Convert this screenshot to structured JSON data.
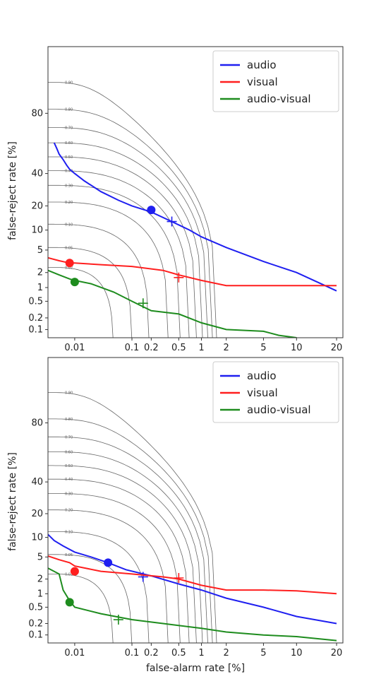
{
  "chart_data": [
    {
      "type": "line",
      "xlabel": "",
      "ylabel": "false-reject rate [%]",
      "x_scale": "probit",
      "y_scale": "probit",
      "xlim": [
        0.003,
        22
      ],
      "ylim": [
        0.06,
        98
      ],
      "x_ticks": [
        "0.01",
        "0.1",
        "0.2",
        "0.5",
        "1",
        "2",
        "5",
        "10",
        "20"
      ],
      "y_ticks": [
        "80",
        "40",
        "20",
        "10",
        "5",
        "2",
        "1",
        "0.5",
        "0.2",
        "0.1"
      ],
      "grid": false,
      "legend_position": "top-right",
      "iso_cost_contours": [
        "0.90",
        "0.80",
        "0.70",
        "0.60",
        "0.50",
        "0.40",
        "0.30",
        "0.20",
        "0.10",
        "0.05",
        "0.02"
      ],
      "series": [
        {
          "name": "audio",
          "color": "#1f1ff0",
          "points": [
            [
              0.004,
              62
            ],
            [
              0.0045,
              58
            ],
            [
              0.005,
              54
            ],
            [
              0.006,
              50
            ],
            [
              0.007,
              46
            ],
            [
              0.008,
              43
            ],
            [
              0.01,
              40
            ],
            [
              0.015,
              35
            ],
            [
              0.03,
              28
            ],
            [
              0.06,
              23
            ],
            [
              0.1,
              20
            ],
            [
              0.2,
              17
            ],
            [
              0.4,
              13
            ],
            [
              0.7,
              10
            ],
            [
              1,
              8
            ],
            [
              2,
              5.5
            ],
            [
              5,
              3.2
            ],
            [
              10,
              2
            ],
            [
              20,
              0.85
            ]
          ],
          "marker_dot": [
            0.2,
            18
          ],
          "marker_plus": [
            0.4,
            13
          ]
        },
        {
          "name": "visual",
          "color": "#ff1f1f",
          "points": [
            [
              0.003,
              3.7
            ],
            [
              0.005,
              3.3
            ],
            [
              0.008,
              3.0
            ],
            [
              0.01,
              3.0
            ],
            [
              0.03,
              2.8
            ],
            [
              0.1,
              2.6
            ],
            [
              0.3,
              2.2
            ],
            [
              0.5,
              1.8
            ],
            [
              1,
              1.4
            ],
            [
              2,
              1.1
            ],
            [
              5,
              1.1
            ],
            [
              10,
              1.1
            ],
            [
              20,
              1.1
            ]
          ],
          "marker_dot": [
            0.008,
            3.0
          ],
          "marker_plus": [
            0.5,
            1.6
          ]
        },
        {
          "name": "audio-visual",
          "color": "#1e8c1e",
          "points": [
            [
              0.003,
              2.2
            ],
            [
              0.005,
              1.8
            ],
            [
              0.008,
              1.5
            ],
            [
              0.01,
              1.4
            ],
            [
              0.02,
              1.2
            ],
            [
              0.05,
              0.8
            ],
            [
              0.1,
              0.5
            ],
            [
              0.2,
              0.3
            ],
            [
              0.5,
              0.25
            ],
            [
              1,
              0.15
            ],
            [
              2,
              0.1
            ],
            [
              5,
              0.09
            ],
            [
              7,
              0.07
            ],
            [
              10,
              0.06
            ]
          ],
          "marker_dot": [
            0.01,
            1.3
          ],
          "marker_plus": [
            0.15,
            0.45
          ]
        }
      ]
    },
    {
      "type": "line",
      "xlabel": "false-alarm rate [%]",
      "ylabel": "false-reject rate [%]",
      "x_scale": "probit",
      "y_scale": "probit",
      "xlim": [
        0.003,
        22
      ],
      "ylim": [
        0.06,
        98
      ],
      "x_ticks": [
        "0.01",
        "0.1",
        "0.2",
        "0.5",
        "1",
        "2",
        "5",
        "10",
        "20"
      ],
      "y_ticks": [
        "80",
        "40",
        "20",
        "10",
        "5",
        "2",
        "1",
        "0.5",
        "0.2",
        "0.1"
      ],
      "grid": false,
      "legend_position": "top-right",
      "iso_cost_contours": [
        "0.90",
        "0.80",
        "0.70",
        "0.60",
        "0.50",
        "0.40",
        "0.30",
        "0.20",
        "0.10",
        "0.05",
        "0.02"
      ],
      "series": [
        {
          "name": "audio",
          "color": "#1f1ff0",
          "points": [
            [
              0.003,
              11
            ],
            [
              0.004,
              9
            ],
            [
              0.006,
              7.5
            ],
            [
              0.01,
              6
            ],
            [
              0.02,
              5
            ],
            [
              0.04,
              4
            ],
            [
              0.08,
              3
            ],
            [
              0.2,
              2.3
            ],
            [
              0.5,
              1.6
            ],
            [
              1,
              1.2
            ],
            [
              2,
              0.8
            ],
            [
              5,
              0.5
            ],
            [
              10,
              0.3
            ],
            [
              20,
              0.2
            ]
          ],
          "marker_dot": [
            0.04,
            4.0
          ],
          "marker_plus": [
            0.15,
            2.2
          ]
        },
        {
          "name": "visual",
          "color": "#ff1f1f",
          "points": [
            [
              0.003,
              5.2
            ],
            [
              0.005,
              4.5
            ],
            [
              0.008,
              4.0
            ],
            [
              0.01,
              3.5
            ],
            [
              0.03,
              2.8
            ],
            [
              0.1,
              2.5
            ],
            [
              0.3,
              2.2
            ],
            [
              0.5,
              2.0
            ],
            [
              1,
              1.5
            ],
            [
              2,
              1.2
            ],
            [
              5,
              1.2
            ],
            [
              10,
              1.15
            ],
            [
              20,
              1.0
            ]
          ],
          "marker_dot": [
            0.01,
            2.8
          ],
          "marker_plus": [
            0.5,
            2.1
          ]
        },
        {
          "name": "audio-visual",
          "color": "#1e8c1e",
          "points": [
            [
              0.003,
              3.2
            ],
            [
              0.005,
              2.5
            ],
            [
              0.006,
              1.2
            ],
            [
              0.008,
              0.7
            ],
            [
              0.01,
              0.5
            ],
            [
              0.03,
              0.35
            ],
            [
              0.1,
              0.25
            ],
            [
              0.3,
              0.2
            ],
            [
              1,
              0.15
            ],
            [
              2,
              0.12
            ],
            [
              5,
              0.1
            ],
            [
              10,
              0.09
            ],
            [
              20,
              0.07
            ]
          ],
          "marker_dot": [
            0.008,
            0.65
          ],
          "marker_plus": [
            0.06,
            0.25
          ]
        }
      ]
    }
  ]
}
